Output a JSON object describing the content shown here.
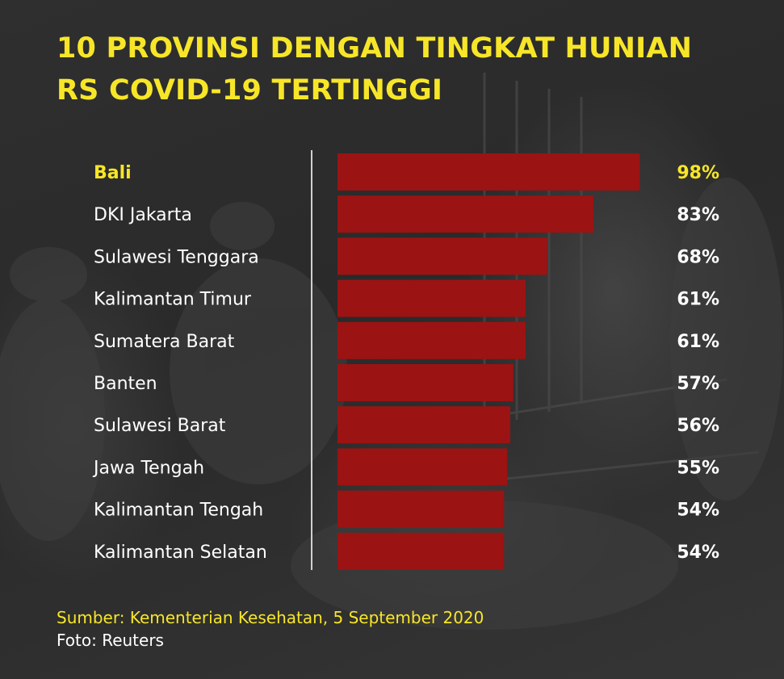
{
  "title_lines": [
    "10 PROVINSI DENGAN TINGKAT HUNIAN",
    "RS COVID-19 TERTINGGI"
  ],
  "source": "Sumber: Kementerian Kesehatan, 5 September 2020",
  "photo_credit": "Foto: Reuters",
  "colors": {
    "bar": "#9b1313",
    "highlight_text": "#f7e628",
    "text": "#ffffff",
    "divider": "#d0d0d0"
  },
  "chart_data": {
    "type": "bar",
    "orientation": "horizontal",
    "title": "10 PROVINSI DENGAN TINGKAT HUNIAN RS COVID-19 TERTINGGI",
    "categories": [
      "Bali",
      "DKI Jakarta",
      "Sulawesi Tenggara",
      "Kalimantan Timur",
      "Sumatera Barat",
      "Banten",
      "Sulawesi Barat",
      "Jawa Tengah",
      "Kalimantan Tengah",
      "Kalimantan Selatan"
    ],
    "values": [
      98,
      83,
      68,
      61,
      61,
      57,
      56,
      55,
      54,
      54
    ],
    "value_labels": [
      "98%",
      "83%",
      "68%",
      "61%",
      "61%",
      "57%",
      "56%",
      "55%",
      "54%",
      "54%"
    ],
    "unit": "%",
    "highlighted_category": "Bali",
    "xlim": [
      0,
      100
    ],
    "grid": false,
    "legend": "none"
  }
}
